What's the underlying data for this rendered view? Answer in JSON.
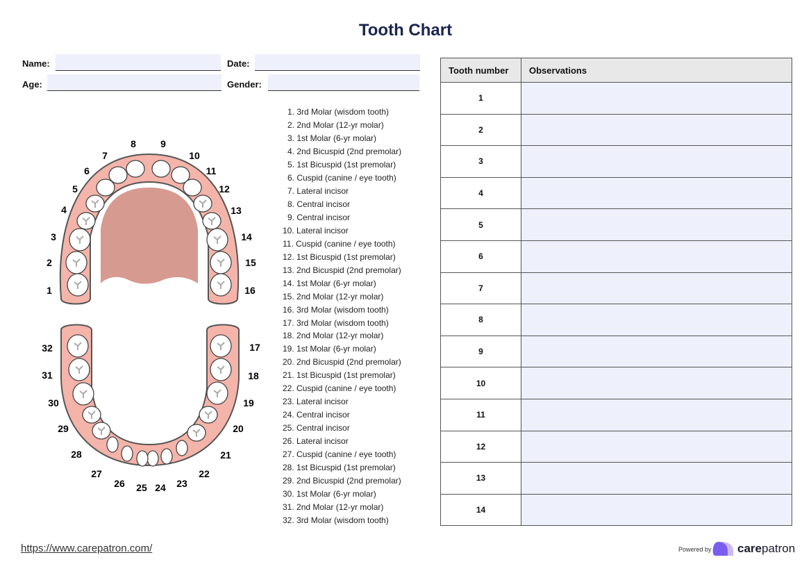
{
  "title": "Tooth Chart",
  "form": {
    "name_label": "Name:",
    "date_label": "Date:",
    "age_label": "Age:",
    "gender_label": "Gender:",
    "name": "",
    "date": "",
    "age": "",
    "gender": ""
  },
  "tooth_legend": [
    "1. 3rd Molar (wisdom tooth)",
    "2. 2nd Molar (12-yr molar)",
    "3. 1st Molar (6-yr molar)",
    "4. 2nd Bicuspid (2nd premolar)",
    "5. 1st Bicuspid (1st premolar)",
    "6. Cuspid (canine / eye tooth)",
    "7. Lateral incisor",
    "8. Central incisor",
    "9. Central incisor",
    "10. Lateral incisor",
    "11. Cuspid (canine / eye tooth)",
    "12. 1st Bicuspid (1st premolar)",
    "13. 2nd Bicuspid (2nd premolar)",
    "14. 1st Molar (6-yr molar)",
    "15. 2nd Molar (12-yr molar)",
    "16. 3rd Molar (wisdom tooth)",
    "17. 3rd Molar (wisdom tooth)",
    "18. 2nd Molar (12-yr molar)",
    "19. 1st Molar (6-yr molar)",
    "20. 2nd Bicuspid (2nd premolar)",
    "21. 1st Bicuspid (1st premolar)",
    "22. Cuspid (canine / eye tooth)",
    "23. Lateral incisor",
    "24. Central incisor",
    "25. Central incisor",
    "26. Lateral incisor",
    "27. Cuspid (canine / eye tooth)",
    "28. 1st Bicuspid (1st premolar)",
    "29. 2nd Bicuspid (2nd premolar)",
    "30. 1st Molar (6-yr molar)",
    "31. 2nd Molar (12-yr molar)",
    "32. 3rd Molar (wisdom tooth)"
  ],
  "diagram": {
    "tooth_numbers": [
      "1",
      "2",
      "3",
      "4",
      "5",
      "6",
      "7",
      "8",
      "9",
      "10",
      "11",
      "12",
      "13",
      "14",
      "15",
      "16",
      "17",
      "18",
      "19",
      "20",
      "21",
      "22",
      "23",
      "24",
      "25",
      "26",
      "27",
      "28",
      "29",
      "30",
      "31",
      "32"
    ],
    "gum_color": "#f4b4aa",
    "palate_color": "#d69a90"
  },
  "table": {
    "headers": [
      "Tooth number",
      "Observations"
    ],
    "rows": [
      {
        "tooth": "1",
        "obs": ""
      },
      {
        "tooth": "2",
        "obs": ""
      },
      {
        "tooth": "3",
        "obs": ""
      },
      {
        "tooth": "4",
        "obs": ""
      },
      {
        "tooth": "5",
        "obs": ""
      },
      {
        "tooth": "6",
        "obs": ""
      },
      {
        "tooth": "7",
        "obs": ""
      },
      {
        "tooth": "8",
        "obs": ""
      },
      {
        "tooth": "9",
        "obs": ""
      },
      {
        "tooth": "10",
        "obs": ""
      },
      {
        "tooth": "11",
        "obs": ""
      },
      {
        "tooth": "12",
        "obs": ""
      },
      {
        "tooth": "13",
        "obs": ""
      },
      {
        "tooth": "14",
        "obs": ""
      }
    ]
  },
  "footer": {
    "url": "https://www.carepatron.com/",
    "powered_by": "Powered by",
    "brand_bold": "care",
    "brand_rest": "patron",
    "brand_color": "#7b5cf0"
  }
}
